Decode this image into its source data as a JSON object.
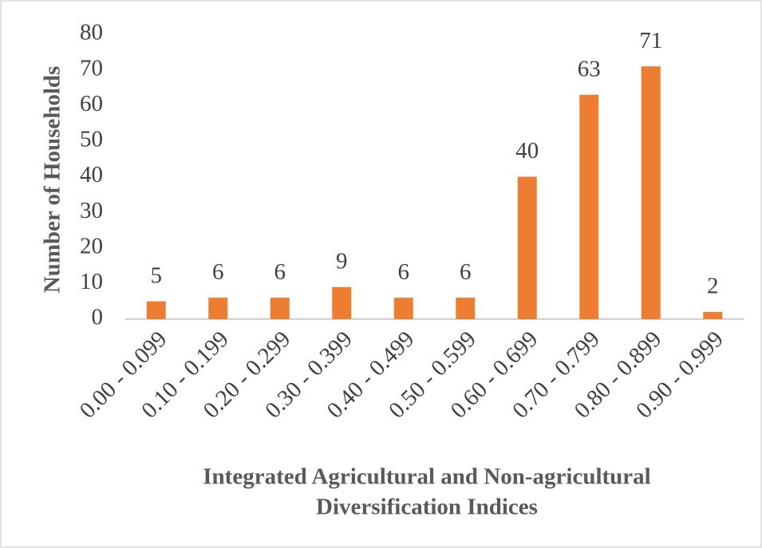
{
  "chart_data": {
    "type": "bar",
    "categories": [
      "0.00 - 0.099",
      "0.10 - 0.199",
      "0.20 - 0.299",
      "0.30 - 0.399",
      "0.40 - 0.499",
      "0.50 - 0.599",
      "0.60 - 0.699",
      "0.70 - 0.799",
      "0.80 - 0.899",
      "0.90 - 0.999"
    ],
    "values": [
      5,
      6,
      6,
      9,
      6,
      6,
      40,
      63,
      71,
      2
    ],
    "color": "#ed7d31",
    "ylim": [
      0,
      80
    ],
    "yticks": [
      0,
      10,
      20,
      30,
      40,
      50,
      60,
      70,
      80
    ],
    "grid": false,
    "data_labels": true,
    "ylabel": "Number of Households",
    "xlabel": [
      "Integrated Agricultural and Non-agricultural",
      "Diversification Indices"
    ]
  }
}
